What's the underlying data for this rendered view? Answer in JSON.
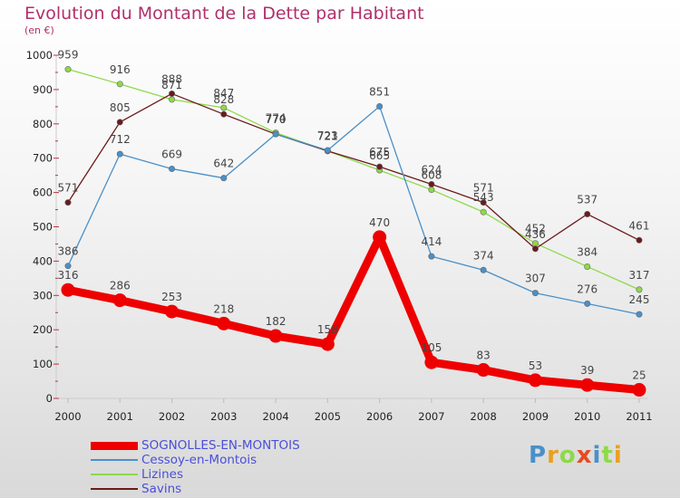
{
  "title": "Evolution du Montant de la Dette par Habitant",
  "subtitle": "(en €)",
  "logo": "Proxiti",
  "chart_data": {
    "type": "line",
    "categories": [
      "2000",
      "2001",
      "2002",
      "2003",
      "2004",
      "2005",
      "2006",
      "2007",
      "2008",
      "2009",
      "2010",
      "2011"
    ],
    "ylim": [
      0,
      1000
    ],
    "yticks": [
      0,
      100,
      200,
      300,
      400,
      500,
      600,
      700,
      800,
      900,
      1000
    ],
    "grid": false,
    "legend_position": "bottom",
    "series": [
      {
        "name": "SOGNOLLES-EN-MONTOIS",
        "color": "#ee0000",
        "values": [
          316,
          286,
          253,
          218,
          182,
          158,
          470,
          105,
          83,
          53,
          39,
          25
        ]
      },
      {
        "name": "Cessoy-en-Montois",
        "color": "#4a90c8",
        "values": [
          386,
          712,
          669,
          642,
          770,
          723,
          851,
          414,
          374,
          307,
          276,
          245
        ]
      },
      {
        "name": "Lizines",
        "color": "#8ed94a",
        "values": [
          959,
          916,
          871,
          847,
          774,
          721,
          665,
          608,
          543,
          452,
          384,
          317
        ]
      },
      {
        "name": "Savins",
        "color": "#6b1a1a",
        "values": [
          571,
          805,
          888,
          828,
          770,
          721,
          675,
          624,
          571,
          436,
          537,
          461
        ]
      }
    ]
  },
  "colors": {
    "title": "#b0306a",
    "legend_text": "#4a4fd8",
    "axis_text": "#222222",
    "label_text": "#444444"
  }
}
